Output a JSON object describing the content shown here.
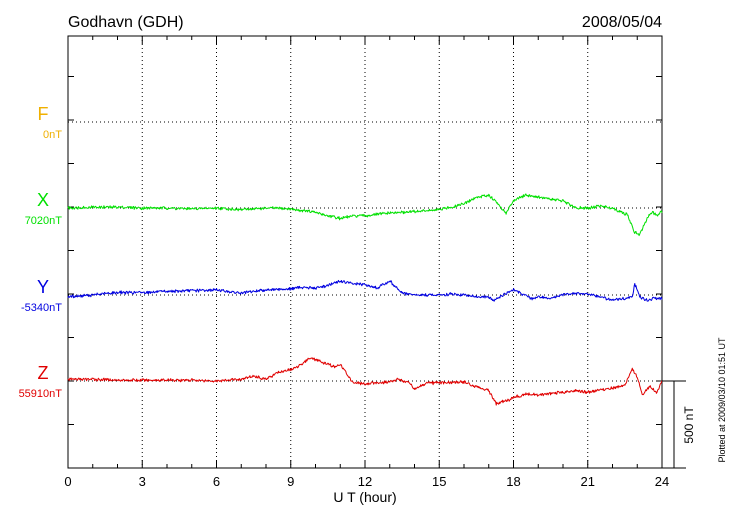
{
  "chart_data": {
    "type": "line",
    "title": "Godhavn (GDH)",
    "date": "2008/05/04",
    "xlabel": "U T (hour)",
    "xlim": [
      0,
      24
    ],
    "xticks": [
      0,
      3,
      6,
      9,
      12,
      15,
      18,
      21,
      24
    ],
    "xtick_labels": [
      "0",
      "3",
      "6",
      "9",
      "12",
      "15",
      "18",
      "21",
      "24"
    ],
    "grid": true,
    "scale_bar_label": "500 nT",
    "plotted_note": "Plotted at 2009/03/10 01:51 UT",
    "series": [
      {
        "name": "F",
        "baseline_label": "0nT",
        "color": "#f0b000",
        "baseline_nT": 0,
        "x": [],
        "values_nT": []
      },
      {
        "name": "X",
        "baseline_label": "7020nT",
        "color": "#00e000",
        "baseline_nT": 7020,
        "x": [
          0,
          1,
          2,
          3,
          4,
          5,
          6,
          7,
          8,
          9,
          10,
          10.5,
          11,
          11.5,
          12,
          12.5,
          13,
          14,
          15,
          15.5,
          16,
          16.5,
          17,
          17.3,
          17.7,
          18,
          18.5,
          19,
          19.5,
          20,
          20.5,
          21,
          21.5,
          22,
          22.3,
          22.6,
          22.9,
          23.1,
          23.3,
          23.6,
          23.8,
          24
        ],
        "values_nT": [
          7020,
          7025,
          7025,
          7020,
          7020,
          7015,
          7020,
          7010,
          7020,
          7015,
          6995,
          6975,
          6960,
          6975,
          6975,
          6985,
          6990,
          7000,
          7010,
          7025,
          7045,
          7080,
          7095,
          7055,
          6990,
          7065,
          7095,
          7085,
          7070,
          7060,
          7020,
          7020,
          7030,
          7020,
          7000,
          6980,
          6880,
          6865,
          6935,
          7000,
          6975,
          7000
        ]
      },
      {
        "name": "Y",
        "baseline_label": "-5340nT",
        "color": "#0000e0",
        "baseline_nT": -5340,
        "x": [
          0,
          1,
          2,
          3,
          4,
          5,
          6,
          7,
          8,
          9,
          9.5,
          10,
          10.5,
          11,
          11.5,
          12,
          12.5,
          13,
          13.5,
          14,
          14.5,
          15,
          15.5,
          16,
          16.5,
          17,
          17.2,
          17.5,
          18,
          18.3,
          18.7,
          19,
          19.5,
          20,
          20.5,
          21,
          21.5,
          22,
          22.5,
          22.8,
          22.9,
          23.1,
          23.4,
          23.7,
          24
        ],
        "values_nT": [
          -5350,
          -5340,
          -5325,
          -5325,
          -5320,
          -5315,
          -5310,
          -5330,
          -5310,
          -5305,
          -5295,
          -5300,
          -5285,
          -5260,
          -5275,
          -5280,
          -5300,
          -5260,
          -5330,
          -5340,
          -5340,
          -5340,
          -5335,
          -5340,
          -5350,
          -5355,
          -5370,
          -5345,
          -5310,
          -5330,
          -5360,
          -5350,
          -5360,
          -5340,
          -5330,
          -5335,
          -5350,
          -5370,
          -5360,
          -5350,
          -5275,
          -5350,
          -5370,
          -5360,
          -5360
        ]
      },
      {
        "name": "Z",
        "baseline_label": "55910nT",
        "color": "#e00000",
        "baseline_nT": 55910,
        "x": [
          0,
          1,
          2,
          3,
          4,
          5,
          6,
          7,
          7.5,
          8,
          8.5,
          9,
          9.3,
          9.8,
          10.3,
          10.8,
          11,
          11.3,
          11.5,
          12,
          12.5,
          13,
          13.3,
          13.8,
          14,
          14.5,
          15,
          16,
          16.5,
          17,
          17.3,
          17.8,
          18,
          18.5,
          19,
          20,
          20.5,
          21,
          21.5,
          22,
          22.5,
          22.8,
          23,
          23.2,
          23.5,
          23.8,
          24
        ],
        "values_nT": [
          55920,
          55920,
          55915,
          55915,
          55915,
          55915,
          55910,
          55920,
          55940,
          55920,
          55960,
          55975,
          55995,
          56045,
          56015,
          55990,
          56005,
          55945,
          55900,
          55895,
          55900,
          55905,
          55920,
          55900,
          55865,
          55895,
          55900,
          55905,
          55875,
          55855,
          55780,
          55800,
          55815,
          55835,
          55830,
          55845,
          55855,
          55845,
          55860,
          55870,
          55885,
          55980,
          55935,
          55830,
          55880,
          55840,
          55915
        ]
      }
    ]
  }
}
